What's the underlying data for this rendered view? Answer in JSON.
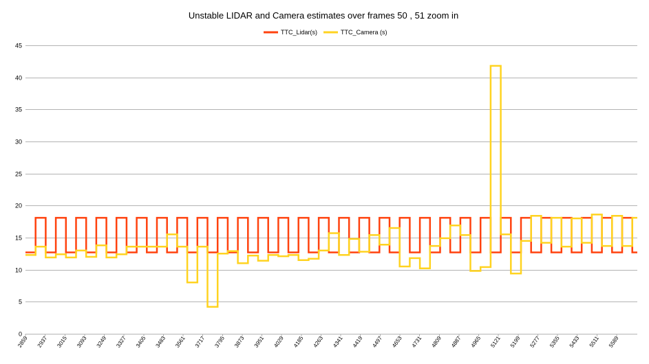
{
  "chart_data": {
    "type": "line",
    "title": "Unstable LIDAR and Camera estimates over frames  50 , 51  zoom in",
    "xlabel": "",
    "ylabel": "",
    "ylim": [
      0,
      45
    ],
    "yticks": [
      0,
      5,
      10,
      15,
      20,
      25,
      30,
      35,
      40,
      45
    ],
    "grid": true,
    "legend_position": "top-center",
    "x_start": 2859,
    "x_step": 13,
    "x_end": 5628,
    "xtick_labels": [
      "2859",
      "2937",
      "3015",
      "3093",
      "3249",
      "3327",
      "3405",
      "3483",
      "3561",
      "3717",
      "3795",
      "3873",
      "3951",
      "4029",
      "4185",
      "4263",
      "4341",
      "4419",
      "4497",
      "4653",
      "4731",
      "4809",
      "4887",
      "4965",
      "5121",
      "5199",
      "5277",
      "5355",
      "5433",
      "5511",
      "5589"
    ],
    "series": [
      {
        "name": "TTC_Lidar(s)",
        "color": "#ff420e",
        "pattern": "square-wave",
        "low": 12.7,
        "high": 18.1,
        "segments_x": [
          2859,
          2865,
          2872,
          2878,
          2885,
          2891,
          2898,
          2904,
          2911,
          2917,
          2924,
          2930,
          2937,
          2943,
          2950,
          2956,
          2963,
          2969,
          2976,
          2982,
          2989,
          2995,
          3002,
          3008,
          3015,
          3021,
          3028,
          3034,
          3041,
          3047,
          3054,
          3060,
          3067,
          3073,
          3080,
          3086,
          3093,
          3099,
          3106,
          3112,
          3119,
          3125,
          3132,
          3138,
          3145,
          3151,
          3158,
          3164,
          3171,
          3177,
          3184,
          3190,
          3197,
          3203,
          3210,
          3216,
          3223,
          3229,
          3236,
          3242,
          3249,
          3255,
          3262,
          3268,
          3275,
          3281,
          3288,
          3294,
          3301,
          3307,
          3314,
          3320,
          3327,
          3333,
          3340,
          3346,
          3353,
          3359,
          3366,
          3372,
          3379,
          3385,
          3392,
          3398,
          3405,
          3411,
          3418,
          3424,
          3431,
          3437,
          3444,
          3450,
          3457,
          3463,
          3470,
          3476,
          3483,
          3489,
          3496,
          3502,
          3509,
          3515,
          3522,
          3528,
          3535,
          3541,
          3548,
          3554,
          3561
        ]
      },
      {
        "name": "TTC_Camera (s)",
        "color": "#ffd320",
        "values_by_half_cycle": [
          12.3,
          13.6,
          11.9,
          12.4,
          11.9,
          13.0,
          12.0,
          13.8,
          11.9,
          12.4,
          13.6,
          13.6,
          13.6,
          13.6,
          15.5,
          13.6,
          8.0,
          13.6,
          4.2,
          12.5,
          12.9,
          11.0,
          12.2,
          11.4,
          12.3,
          12.1,
          12.3,
          11.5,
          11.7,
          13.0,
          15.7,
          12.3,
          14.8,
          12.8,
          15.4,
          13.9,
          16.5,
          10.5,
          11.8,
          10.2,
          13.7,
          14.9,
          16.9,
          15.4,
          9.8,
          10.4,
          41.8,
          15.5,
          9.4,
          14.5,
          18.4,
          14.2,
          18.1,
          13.6,
          18.0,
          14.2,
          18.6,
          13.7,
          18.4,
          13.7,
          18.1
        ]
      }
    ]
  }
}
